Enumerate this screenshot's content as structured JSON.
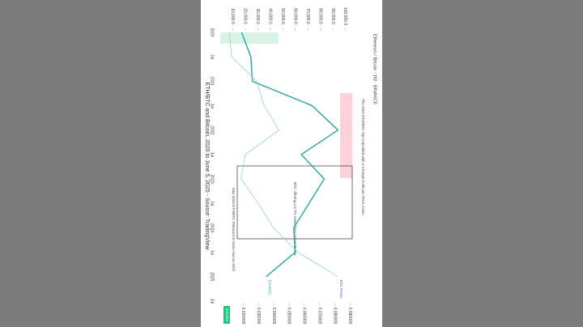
{
  "chart_data": {
    "type": "line",
    "title": "ETH/BTC and Bitcoin, 2020 to June 5, 2025 - Source: TradingView",
    "subtitle": "Ethereum / Bitcoin · 1W · BINANCE",
    "categories": [
      "2020",
      "Jul",
      "2021",
      "Jul",
      "2022",
      "Jul",
      "2023",
      "Jul",
      "2024",
      "Jul",
      "2025",
      "Jul"
    ],
    "series": [
      {
        "name": "ETH/BTC",
        "color": "#26a69a",
        "axis": "y2",
        "values": [
          0.019,
          0.025,
          0.026,
          0.065,
          0.082,
          0.058,
          0.073,
          0.063,
          0.053,
          0.054,
          0.035,
          null
        ]
      },
      {
        "name": "BTC Prices",
        "color": "#8fd3c8",
        "values": [
          7200,
          9200,
          29000,
          35000,
          47000,
          20000,
          16600,
          30500,
          42500,
          62000,
          94000,
          null
        ]
      }
    ],
    "ylim": [
      0,
      110000
    ],
    "yticks": [
      {
        "value": 10000,
        "label": "10,000.0"
      },
      {
        "value": 20000,
        "label": "20,000.0"
      },
      {
        "value": 30000,
        "label": "30,000.0"
      },
      {
        "value": 40000,
        "label": "40,000.0"
      },
      {
        "value": 50000,
        "label": "50,000.0"
      },
      {
        "value": 60000,
        "label": "60,000.0"
      },
      {
        "value": 70000,
        "label": "70,000.0"
      },
      {
        "value": 80000,
        "label": "80,000.0"
      },
      {
        "value": 90000,
        "label": "90,000.0"
      },
      {
        "value": 100000,
        "label": "100,000.0"
      }
    ],
    "y2lim": [
      0.005,
      0.095
    ],
    "y2ticks": [
      {
        "value": 0.02,
        "label": "0.020000"
      },
      {
        "value": 0.03,
        "label": "0.030000"
      },
      {
        "value": 0.04,
        "label": "0.040000"
      },
      {
        "value": 0.05,
        "label": "0.050000"
      },
      {
        "value": 0.06,
        "label": "0.060000"
      },
      {
        "value": 0.07,
        "label": "0.070000"
      },
      {
        "value": 0.08,
        "label": "0.080000"
      },
      {
        "value": 0.09,
        "label": "0.090000"
      }
    ],
    "annotations": [
      "The 2021 ETH/BTC Top Coincided with a Change in Bitcoin Price Action",
      "BTC offering a 3.7% retest then moves below",
      "May 2023 ETH/BTC Rebound at Same low as 2019"
    ],
    "last_value_label": "0.01892",
    "grid": false
  }
}
